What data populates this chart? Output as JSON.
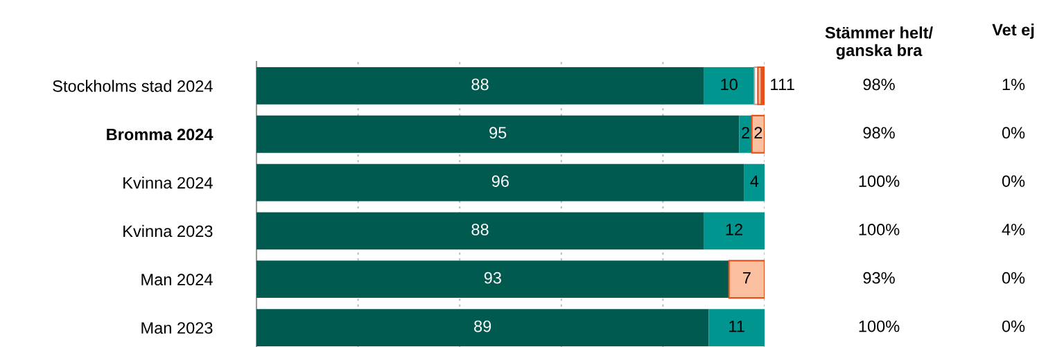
{
  "chart_data": {
    "type": "bar",
    "orientation": "horizontal",
    "stacked": true,
    "categories": [
      "Stockholms stad 2024",
      "Bromma 2024",
      "Kvinna 2024",
      "Kvinna 2023",
      "Man 2024",
      "Man 2023"
    ],
    "series": [
      {
        "color": "#005a4f",
        "values": [
          88,
          95,
          96,
          88,
          93,
          89
        ],
        "value_labels": [
          "88",
          "95",
          "96",
          "88",
          "93",
          "89"
        ]
      },
      {
        "color": "#00968f",
        "values": [
          10,
          2.5,
          4,
          12,
          0,
          11
        ],
        "value_labels": [
          "10",
          "2",
          "4",
          "12",
          null,
          "11"
        ]
      },
      {
        "color": "#ffffff",
        "values": [
          0.7,
          0,
          0,
          0,
          0,
          0
        ],
        "value_labels": [
          "1",
          null,
          null,
          null,
          null,
          null
        ]
      },
      {
        "color": "#f9bf9e",
        "values": [
          0.7,
          2.5,
          0,
          0,
          7,
          0
        ],
        "value_labels": [
          "1",
          "2",
          null,
          null,
          "7",
          null
        ]
      },
      {
        "color": "#e8501b",
        "values": [
          0.6,
          0,
          0,
          0,
          0,
          0
        ],
        "value_labels": [
          "1",
          null,
          null,
          null,
          null,
          null
        ]
      }
    ],
    "xlim": [
      0,
      100
    ],
    "xticks": [
      {
        "value": 0,
        "label": null
      },
      {
        "value": 20,
        "label": null
      },
      {
        "value": 40,
        "label": null
      },
      {
        "value": 60,
        "label": null
      },
      {
        "value": 80,
        "label": null
      },
      {
        "value": 100,
        "label": null
      }
    ],
    "tick_labels": "y",
    "grid": "x",
    "legend": false,
    "annotations": [
      "Stämmer helt/\nganska bra",
      "Vet ej",
      "98%",
      "1%",
      "98%",
      "0%",
      "100%",
      "0%",
      "100%",
      "4%",
      "93%",
      "0%",
      "100%",
      "0%"
    ]
  }
}
